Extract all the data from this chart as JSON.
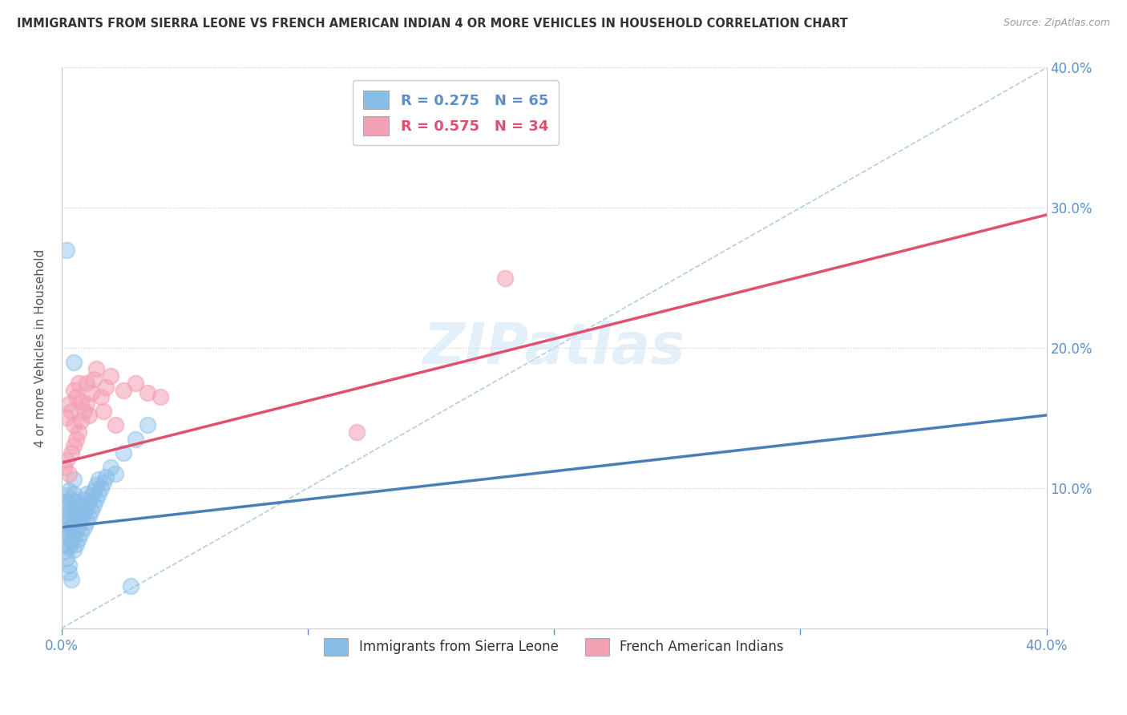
{
  "title": "IMMIGRANTS FROM SIERRA LEONE VS FRENCH AMERICAN INDIAN 4 OR MORE VEHICLES IN HOUSEHOLD CORRELATION CHART",
  "source": "Source: ZipAtlas.com",
  "ylabel": "4 or more Vehicles in Household",
  "legend_blue_R": "R = 0.275",
  "legend_blue_N": "N = 65",
  "legend_pink_R": "R = 0.575",
  "legend_pink_N": "N = 34",
  "xlim": [
    0.0,
    0.4
  ],
  "ylim": [
    0.0,
    0.4
  ],
  "xtick_edge_labels": [
    "0.0%",
    "40.0%"
  ],
  "xtick_edge_vals": [
    0.0,
    0.4
  ],
  "xtick_minor_vals": [
    0.1,
    0.2,
    0.3
  ],
  "ytick_vals": [
    0.1,
    0.2,
    0.3,
    0.4
  ],
  "ytick_right_labels": [
    "10.0%",
    "20.0%",
    "30.0%",
    "40.0%"
  ],
  "color_blue": "#88bde8",
  "color_pink": "#f4a0b5",
  "line_blue": "#4a7fb5",
  "line_pink": "#e05070",
  "background_color": "#ffffff",
  "grid_color": "#cccccc",
  "watermark": "ZIPatlas",
  "legend_bottom_blue": "Immigrants from Sierra Leone",
  "legend_bottom_pink": "French American Indians",
  "blue_line_x0": 0.0,
  "blue_line_y0": 0.072,
  "blue_line_x1": 0.4,
  "blue_line_y1": 0.152,
  "pink_line_x0": 0.0,
  "pink_line_y0": 0.118,
  "pink_line_x1": 0.4,
  "pink_line_y1": 0.295,
  "blue_scatter_x": [
    0.001,
    0.001,
    0.001,
    0.001,
    0.002,
    0.002,
    0.002,
    0.002,
    0.002,
    0.002,
    0.003,
    0.003,
    0.003,
    0.003,
    0.003,
    0.003,
    0.004,
    0.004,
    0.004,
    0.004,
    0.005,
    0.005,
    0.005,
    0.005,
    0.005,
    0.005,
    0.006,
    0.006,
    0.006,
    0.006,
    0.007,
    0.007,
    0.007,
    0.008,
    0.008,
    0.008,
    0.009,
    0.009,
    0.009,
    0.01,
    0.01,
    0.01,
    0.011,
    0.011,
    0.012,
    0.012,
    0.013,
    0.013,
    0.014,
    0.014,
    0.015,
    0.015,
    0.016,
    0.017,
    0.018,
    0.02,
    0.022,
    0.025,
    0.03,
    0.035,
    0.002,
    0.003,
    0.004,
    0.028,
    0.005
  ],
  "blue_scatter_y": [
    0.055,
    0.065,
    0.075,
    0.085,
    0.06,
    0.07,
    0.08,
    0.09,
    0.05,
    0.095,
    0.058,
    0.068,
    0.078,
    0.088,
    0.098,
    0.045,
    0.062,
    0.072,
    0.082,
    0.092,
    0.056,
    0.066,
    0.076,
    0.086,
    0.096,
    0.106,
    0.06,
    0.07,
    0.08,
    0.09,
    0.064,
    0.074,
    0.084,
    0.068,
    0.078,
    0.088,
    0.072,
    0.082,
    0.092,
    0.076,
    0.086,
    0.096,
    0.08,
    0.09,
    0.084,
    0.094,
    0.088,
    0.098,
    0.092,
    0.102,
    0.096,
    0.106,
    0.1,
    0.104,
    0.108,
    0.115,
    0.11,
    0.125,
    0.135,
    0.145,
    0.27,
    0.04,
    0.035,
    0.03,
    0.19
  ],
  "pink_scatter_x": [
    0.001,
    0.002,
    0.002,
    0.003,
    0.003,
    0.004,
    0.004,
    0.005,
    0.005,
    0.005,
    0.006,
    0.006,
    0.007,
    0.007,
    0.008,
    0.008,
    0.009,
    0.01,
    0.01,
    0.011,
    0.012,
    0.013,
    0.014,
    0.016,
    0.018,
    0.02,
    0.025,
    0.03,
    0.035,
    0.04,
    0.12,
    0.18,
    0.017,
    0.022
  ],
  "pink_scatter_y": [
    0.115,
    0.12,
    0.15,
    0.11,
    0.16,
    0.125,
    0.155,
    0.13,
    0.145,
    0.17,
    0.135,
    0.165,
    0.14,
    0.175,
    0.148,
    0.162,
    0.155,
    0.16,
    0.175,
    0.152,
    0.168,
    0.178,
    0.185,
    0.165,
    0.172,
    0.18,
    0.17,
    0.175,
    0.168,
    0.165,
    0.14,
    0.25,
    0.155,
    0.145
  ]
}
